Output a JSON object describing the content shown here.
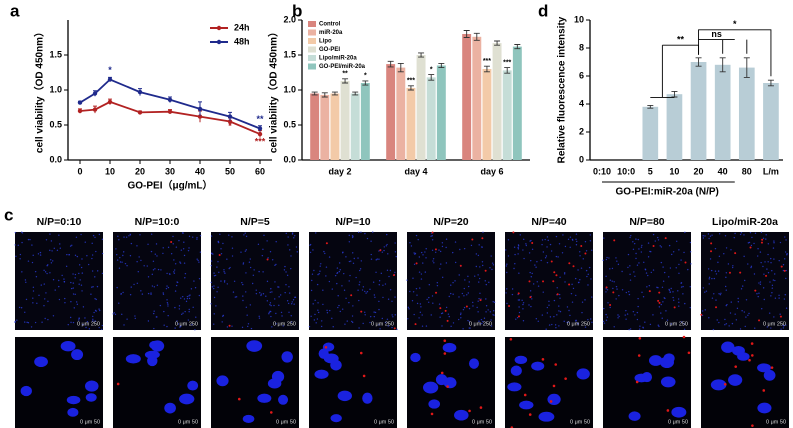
{
  "chart_data": [
    {
      "type": "line",
      "panel": "a",
      "x": [
        0,
        5,
        10,
        20,
        30,
        40,
        50,
        60
      ],
      "xlim": [
        -4,
        64
      ],
      "xticks": [
        0,
        10,
        20,
        30,
        40,
        50,
        60
      ],
      "ylim": [
        0,
        2.0
      ],
      "yticks": [
        {
          "value": 0,
          "label": "0.0"
        },
        {
          "value": 0.5,
          "label": "0.5"
        },
        {
          "value": 1.0,
          "label": "1.0"
        },
        {
          "value": 1.5,
          "label": "1.5"
        }
      ],
      "xlabel": "GO-PEI（μg/mL）",
      "ylabel": "cell viability（OD 450nm）",
      "legend": "upper right",
      "series": [
        {
          "name": "24h",
          "color": "#b22222",
          "values": [
            0.7,
            0.72,
            0.83,
            0.68,
            0.69,
            0.62,
            0.55,
            0.37
          ],
          "errors": [
            0.03,
            0.05,
            0.04,
            0.02,
            0.03,
            0.08,
            0.05,
            0.05
          ]
        },
        {
          "name": "48h",
          "color": "#1f2a8c",
          "values": [
            0.82,
            0.95,
            1.15,
            0.97,
            0.86,
            0.73,
            0.62,
            0.45
          ],
          "errors": [
            0.02,
            0.04,
            0.03,
            0.05,
            0.04,
            0.1,
            0.06,
            0.04
          ]
        }
      ],
      "annotations": [
        "*",
        "*",
        "**",
        "***"
      ]
    },
    {
      "type": "bar",
      "panel": "b",
      "categories": [
        "day 2",
        "day 4",
        "day 6"
      ],
      "ylim": [
        0,
        2.0
      ],
      "yticks": [
        {
          "value": 0,
          "label": "0.0"
        },
        {
          "value": 0.5,
          "label": "0.5"
        },
        {
          "value": 1.0,
          "label": "1.0"
        },
        {
          "value": 1.5,
          "label": "1.5"
        },
        {
          "value": 2.0,
          "label": "2.0"
        }
      ],
      "ylabel": "cell viability（OD 450nm）",
      "legend": "upper left",
      "series": [
        {
          "name": "Control",
          "color": "#d9857e",
          "values": [
            0.95,
            1.37,
            1.8
          ],
          "errors": [
            0.02,
            0.04,
            0.05
          ]
        },
        {
          "name": "miR-20a",
          "color": "#ebb2a2",
          "values": [
            0.93,
            1.32,
            1.76
          ],
          "errors": [
            0.03,
            0.06,
            0.05
          ]
        },
        {
          "name": "Lipo",
          "color": "#f3caa8",
          "values": [
            0.95,
            1.03,
            1.3
          ],
          "errors": [
            0.02,
            0.03,
            0.04
          ]
        },
        {
          "name": "GO-PEI",
          "color": "#dfe0d2",
          "values": [
            1.13,
            1.5,
            1.67
          ],
          "errors": [
            0.03,
            0.03,
            0.03
          ]
        },
        {
          "name": "Lipo/miR-20a",
          "color": "#c5ddd7",
          "values": [
            0.95,
            1.18,
            1.28
          ],
          "errors": [
            0.02,
            0.04,
            0.04
          ]
        },
        {
          "name": "GO-PEI/miR-20a",
          "color": "#8fc5bd",
          "values": [
            1.1,
            1.35,
            1.62
          ],
          "errors": [
            0.03,
            0.03,
            0.03
          ]
        }
      ],
      "annotations": [
        "**",
        "*",
        "***",
        "*",
        "***",
        "***"
      ]
    },
    {
      "type": "bar",
      "panel": "d",
      "categories": [
        "0:10",
        "10:0",
        "5",
        "10",
        "20",
        "40",
        "80",
        "L/m"
      ],
      "ylim": [
        0,
        10
      ],
      "yticks": [
        0,
        2,
        4,
        6,
        8,
        10
      ],
      "xlabel": "GO-PEI:miR-20a (N/P)",
      "ylabel": "Relative fluorescence intensity",
      "series": [
        {
          "color": "#b8cdd6",
          "values": [
            null,
            null,
            3.8,
            4.7,
            7.0,
            6.8,
            6.6,
            5.5
          ],
          "errors": [
            null,
            null,
            0.1,
            0.2,
            0.3,
            0.5,
            0.7,
            0.2
          ]
        }
      ],
      "annotations": [
        "**",
        "ns",
        "*"
      ]
    }
  ],
  "image_panel": {
    "panel": "c",
    "labels": [
      "N/P=0:10",
      "N/P=10:0",
      "N/P=5",
      "N/P=10",
      "N/P=20",
      "N/P=40",
      "N/P=80",
      "Lipo/miR-20a"
    ],
    "scale_top": "0 μm 250",
    "scale_bottom": "0 μm 50"
  }
}
